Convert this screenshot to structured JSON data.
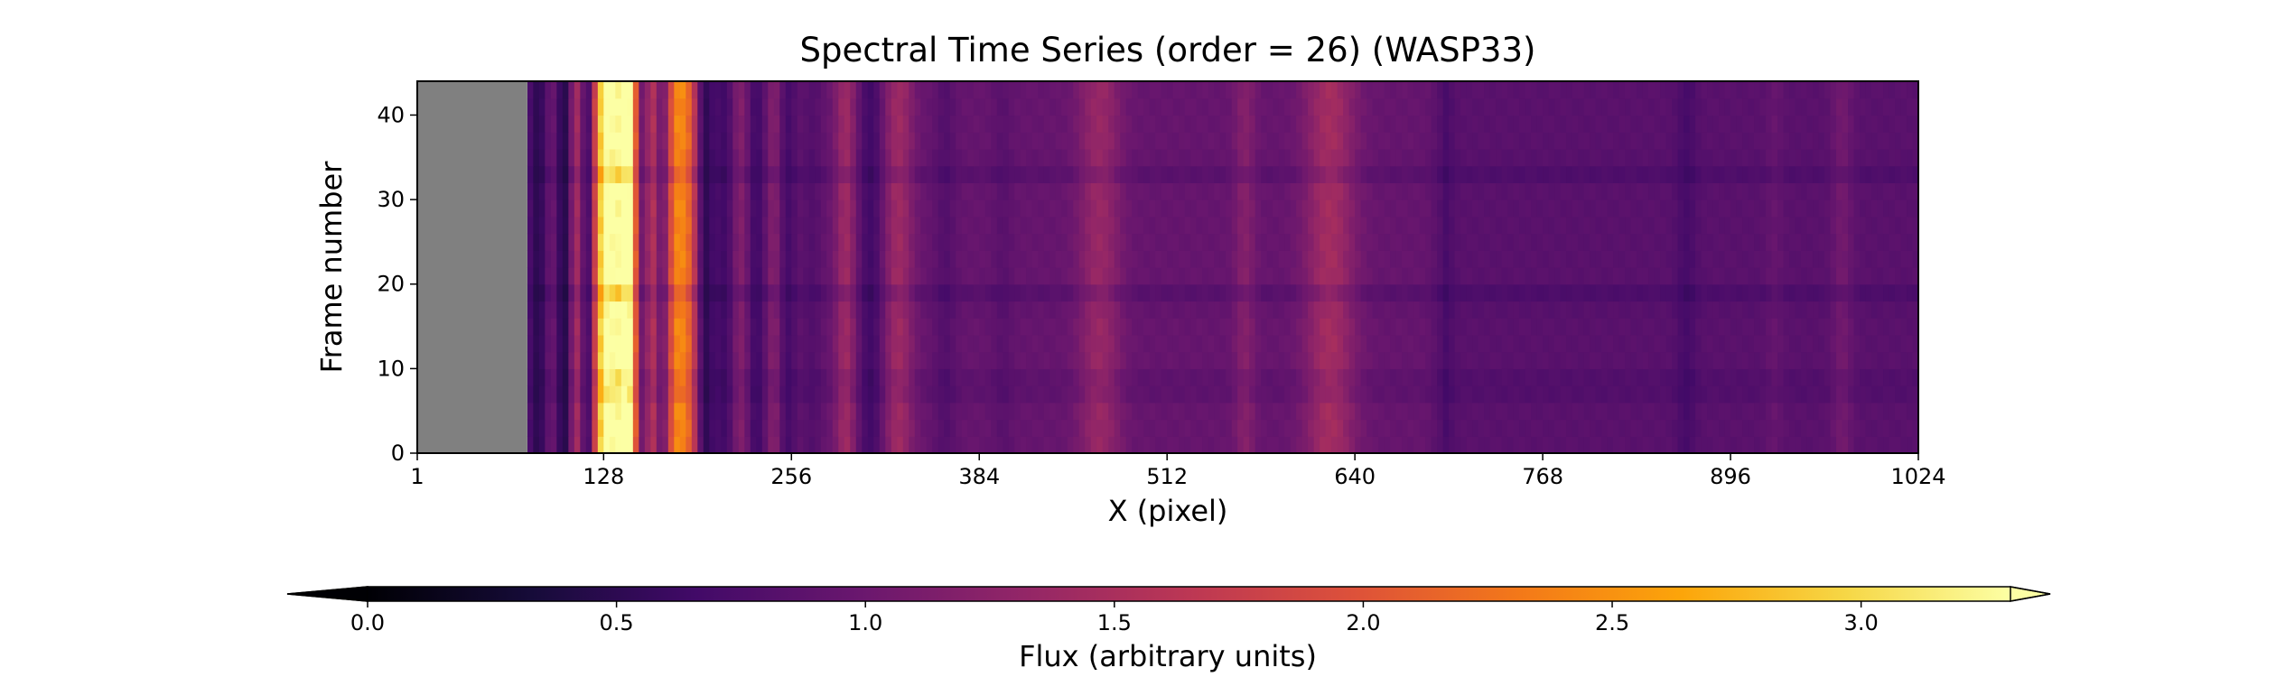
{
  "chart_data": {
    "type": "heatmap",
    "title": "Spectral Time Series (order = 26) (WASP33)",
    "xlabel": "X (pixel)",
    "ylabel": "Frame number",
    "xlim": [
      1,
      1024
    ],
    "ylim": [
      0,
      44
    ],
    "x_ticks": [
      "1",
      "128",
      "256",
      "384",
      "512",
      "640",
      "768",
      "896",
      "1024"
    ],
    "y_ticks": [
      "0",
      "10",
      "20",
      "30",
      "40"
    ],
    "masked_x_range": [
      1,
      76
    ],
    "masked_color": "#808080",
    "colormap": "inferno",
    "colorbar": {
      "label": "Flux (arbitrary units)",
      "range": [
        0.0,
        3.3
      ],
      "extend": "both",
      "ticks": [
        "0.0",
        "0.5",
        "1.0",
        "1.5",
        "2.0",
        "2.5",
        "3.0"
      ]
    },
    "continuum_flux": 0.95,
    "features": [
      {
        "x": 84,
        "width": 5,
        "flux": 0.45
      },
      {
        "x": 92,
        "width": 5,
        "flux": 1.15
      },
      {
        "x": 101,
        "width": 4,
        "flux": 0.35
      },
      {
        "x": 110,
        "width": 4,
        "flux": 1.6
      },
      {
        "x": 117,
        "width": 4,
        "flux": 0.3
      },
      {
        "x": 127,
        "width": 5,
        "flux": 2.2
      },
      {
        "x": 137,
        "width": 8,
        "flux": 3.0
      },
      {
        "x": 146,
        "width": 4,
        "flux": 2.4
      },
      {
        "x": 153,
        "width": 4,
        "flux": 0.5
      },
      {
        "x": 161,
        "width": 4,
        "flux": 1.6
      },
      {
        "x": 168,
        "width": 3,
        "flux": 0.6
      },
      {
        "x": 179,
        "width": 6,
        "flux": 2.4
      },
      {
        "x": 188,
        "width": 4,
        "flux": 1.5
      },
      {
        "x": 197,
        "width": 4,
        "flux": 0.5
      },
      {
        "x": 210,
        "width": 5,
        "flux": 0.65
      },
      {
        "x": 221,
        "width": 4,
        "flux": 1.2
      },
      {
        "x": 232,
        "width": 4,
        "flux": 0.65
      },
      {
        "x": 244,
        "width": 3,
        "flux": 1.2
      },
      {
        "x": 254,
        "width": 4,
        "flux": 0.7
      },
      {
        "x": 270,
        "width": 5,
        "flux": 0.8
      },
      {
        "x": 293,
        "width": 5,
        "flux": 1.4
      },
      {
        "x": 310,
        "width": 6,
        "flux": 0.65
      },
      {
        "x": 329,
        "width": 7,
        "flux": 1.4
      },
      {
        "x": 361,
        "width": 5,
        "flux": 0.8
      },
      {
        "x": 400,
        "width": 5,
        "flux": 0.85
      },
      {
        "x": 466,
        "width": 10,
        "flux": 1.35
      },
      {
        "x": 565,
        "width": 5,
        "flux": 1.2
      },
      {
        "x": 623,
        "width": 12,
        "flux": 1.45
      },
      {
        "x": 700,
        "width": 5,
        "flux": 0.8
      },
      {
        "x": 866,
        "width": 5,
        "flux": 0.8
      },
      {
        "x": 926,
        "width": 4,
        "flux": 1.05
      },
      {
        "x": 972,
        "width": 5,
        "flux": 1.15
      }
    ],
    "frame_dips": [
      {
        "frame": 8,
        "factor": 0.85
      },
      {
        "frame": 18.5,
        "factor": 0.85
      },
      {
        "frame": 33.5,
        "factor": 0.87
      }
    ]
  }
}
